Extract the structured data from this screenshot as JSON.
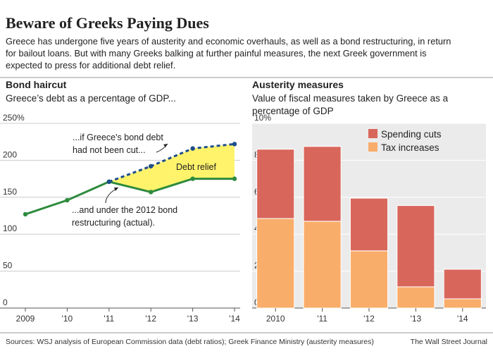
{
  "title": "Beware of Greeks Paying Dues",
  "subtitle": [
    "Greece has undergone five years of austerity and economic overhauls, as well as a bond restructuring, in return",
    "for bailout loans. But with many Greeks balking at further painful measures, the next Greek government is",
    "expected to press for additional debt relief."
  ],
  "source": "Sources: WSJ analysis of European Commission data (debt ratios); Greek Finance Ministry (austerity measures)",
  "credit": "The Wall Street Journal",
  "chart_data": [
    {
      "type": "line",
      "title": "Bond haircut",
      "subtitle": [
        "Greece’s debt as a percentage of GDP..."
      ],
      "categories": [
        "2009",
        "'10",
        "'11",
        "'12",
        "'13",
        "'14"
      ],
      "series": [
        {
          "color": "#2e8b3e",
          "dashed": false,
          "values": [
            127,
            146,
            171,
            157,
            175,
            175
          ]
        },
        {
          "color": "#1f4e8c",
          "dashed": true,
          "values": [
            null,
            null,
            171,
            192,
            216,
            222
          ]
        }
      ],
      "fill_between_color": "#fff36b",
      "annotations": [
        {
          "text": [
            "...if Greece's bond debt",
            "had not been cut..."
          ]
        },
        {
          "text": [
            "Debt relief"
          ]
        },
        {
          "text": [
            "...and under the 2012 bond",
            "restructuring (actual)."
          ]
        }
      ],
      "ylim": [
        0,
        250
      ],
      "yticks": [
        0,
        50,
        100,
        150,
        200,
        {
          "value": 250,
          "label": "250%"
        }
      ],
      "grid": true
    },
    {
      "type": "stacked_bar",
      "title": "Austerity measures",
      "subtitle": [
        "Value of fiscal measures taken by Greece as a",
        "percentage of GDP"
      ],
      "categories": [
        "2010",
        "'11",
        "'12",
        "'13",
        "'14"
      ],
      "series": [
        {
          "name": "Tax increases",
          "color": "#f9ad6a",
          "values": [
            4.85,
            4.7,
            3.1,
            1.15,
            0.5
          ]
        },
        {
          "name": "Spending cuts",
          "color": "#d9665b",
          "values": [
            3.75,
            4.05,
            2.85,
            4.4,
            1.6
          ]
        }
      ],
      "ylim": [
        0,
        10
      ],
      "yticks": [
        0,
        2,
        4,
        6,
        8,
        {
          "value": 10,
          "label": "10%"
        }
      ],
      "grid": true
    }
  ]
}
